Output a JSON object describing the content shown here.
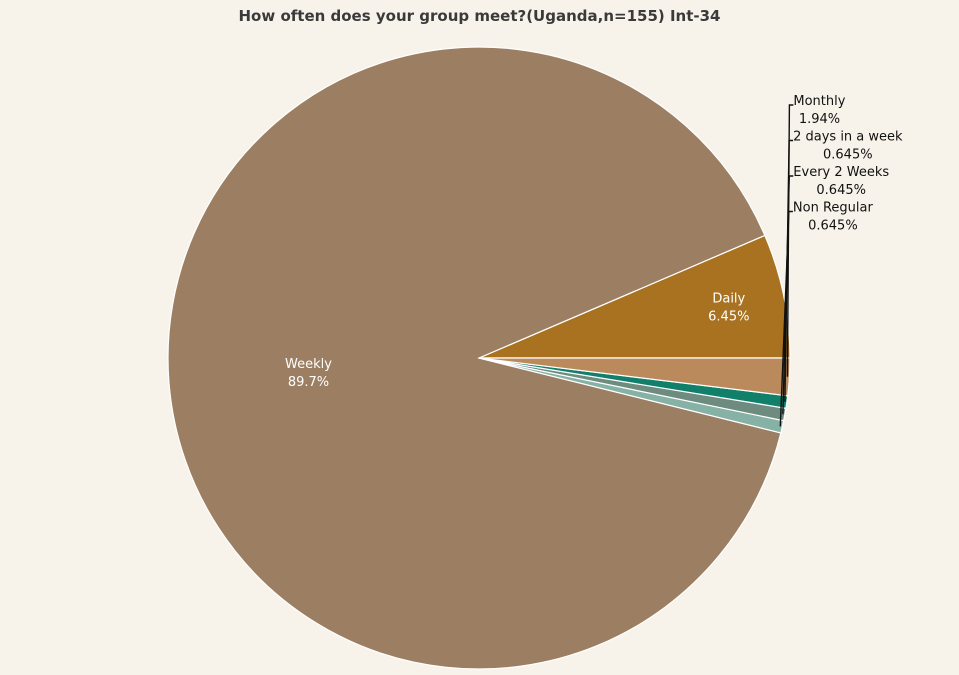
{
  "chart_data": {
    "type": "pie",
    "title": "How often does your group meet?(Uganda,n=155) Int-34",
    "slices": [
      {
        "label": "Daily",
        "value": 6.45,
        "value_label": "6.45%",
        "color": "#a87221",
        "label_position": "inside"
      },
      {
        "label": "Weekly",
        "value": 89.7,
        "value_label": "89.7%",
        "color": "#9c7f62",
        "label_position": "inside"
      },
      {
        "label": "Non Regular",
        "value": 0.645,
        "value_label": "0.645%",
        "color": "#86b2a6",
        "label_position": "outside"
      },
      {
        "label": "Every 2 Weeks",
        "value": 0.645,
        "value_label": "0.645%",
        "color": "#6d8b7e",
        "label_position": "outside"
      },
      {
        "label": "2 days in a week",
        "value": 0.645,
        "value_label": "0.645%",
        "color": "#11806a",
        "label_position": "outside"
      },
      {
        "label": "Monthly",
        "value": 1.94,
        "value_label": "1.94%",
        "color": "#bb8a5c",
        "label_position": "outside"
      }
    ]
  }
}
